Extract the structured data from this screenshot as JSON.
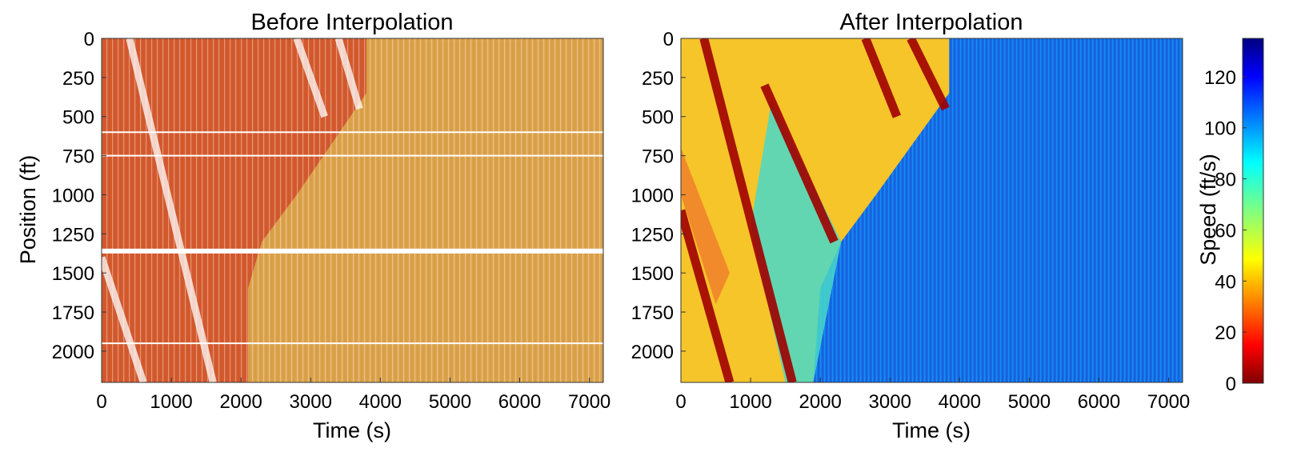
{
  "chart_data": [
    {
      "type": "heatmap",
      "title": "Before Interpolation",
      "xlabel": "Time (s)",
      "ylabel": "Position (ft)",
      "xlim": [
        0,
        7200
      ],
      "ylim": [
        0,
        2200
      ],
      "y_inverted": true,
      "xticks": [
        0,
        1000,
        2000,
        3000,
        4000,
        5000,
        6000,
        7000
      ],
      "yticks": [
        0,
        250,
        500,
        750,
        1000,
        1250,
        1500,
        1750,
        2000
      ],
      "congested_region_boundary": {
        "x": [
          3800,
          3800,
          2800,
          2300,
          2100,
          2100
        ],
        "y": [
          0,
          350,
          1000,
          1300,
          1600,
          2200
        ]
      },
      "congested_speed": 30,
      "free_flow_speed": 45,
      "stop_and_go_waves": [
        {
          "start": [
            400,
            0
          ],
          "end": [
            1600,
            2200
          ]
        },
        {
          "start": [
            0,
            1400
          ],
          "end": [
            600,
            2200
          ]
        },
        {
          "start": [
            2800,
            0
          ],
          "end": [
            3200,
            500
          ]
        },
        {
          "start": [
            3400,
            0
          ],
          "end": [
            3700,
            450
          ]
        }
      ],
      "missing_data_rows": [
        600,
        750,
        1360,
        1950
      ]
    },
    {
      "type": "heatmap",
      "title": "After Interpolation",
      "xlabel": "Time (s)",
      "ylabel": "",
      "xlim": [
        0,
        7200
      ],
      "ylim": [
        0,
        2200
      ],
      "y_inverted": true,
      "xticks": [
        0,
        1000,
        2000,
        3000,
        4000,
        5000,
        6000,
        7000
      ],
      "yticks": [
        0,
        250,
        500,
        750,
        1000,
        1250,
        1500,
        1750,
        2000
      ],
      "congested_region_boundary": {
        "x": [
          3850,
          3850,
          2800,
          2300,
          2000,
          1900
        ],
        "y": [
          0,
          350,
          1000,
          1300,
          1600,
          2200
        ]
      },
      "congested_speed": 50,
      "free_flow_speed": 105,
      "stop_and_go_waves": [
        {
          "start": [
            330,
            0
          ],
          "end": [
            1600,
            2200
          ]
        },
        {
          "start": [
            0,
            1100
          ],
          "end": [
            700,
            2200
          ]
        },
        {
          "start": [
            2650,
            0
          ],
          "end": [
            3100,
            500
          ]
        },
        {
          "start": [
            3300,
            0
          ],
          "end": [
            3800,
            450
          ]
        },
        {
          "start": [
            1200,
            300
          ],
          "end": [
            2200,
            1300
          ]
        }
      ]
    }
  ],
  "colorbar": {
    "label": "Speed (ft/s)",
    "min": 0,
    "max": 135,
    "ticks": [
      0,
      20,
      40,
      60,
      80,
      100,
      120
    ],
    "colormap": "jet"
  }
}
